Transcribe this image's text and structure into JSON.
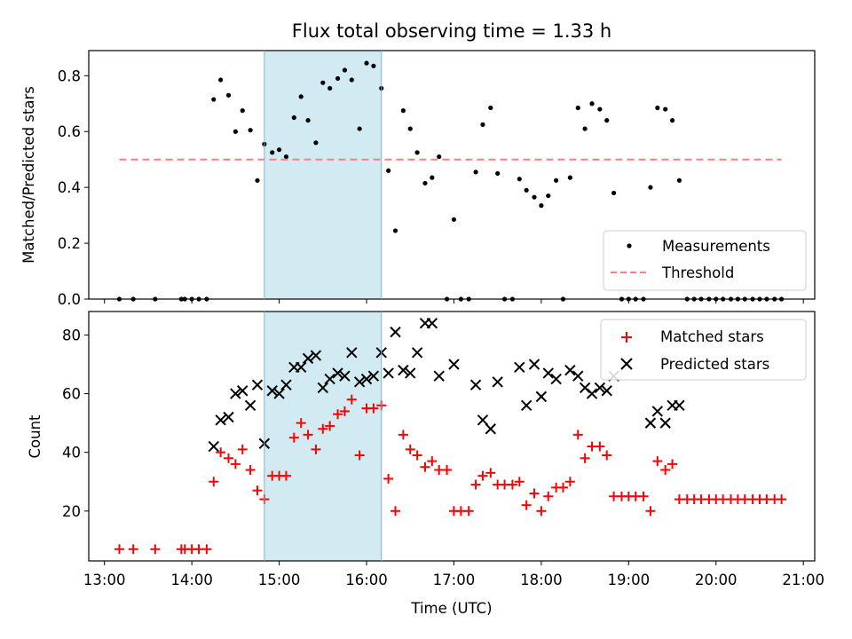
{
  "figure": {
    "title": "Flux total observing time = 1.33 h"
  },
  "chart_data": [
    {
      "type": "scatter",
      "panel": "top",
      "title": "Flux total observing time = 1.33 h",
      "xlabel": "",
      "ylabel": "Matched/Predicted stars",
      "x_unit": "hours UTC",
      "xlim": [
        12.82,
        21.13
      ],
      "ylim": [
        0,
        0.89
      ],
      "yticks": [
        0.0,
        0.2,
        0.4,
        0.6,
        0.8
      ],
      "ytick_labels": [
        "0.0",
        "0.2",
        "0.4",
        "0.6",
        "0.8"
      ],
      "xticks": [
        13,
        14,
        15,
        16,
        17,
        18,
        19,
        20,
        21
      ],
      "grid": false,
      "legend_position": "lower right",
      "shaded_interval": {
        "x": [
          14.83,
          16.17
        ],
        "color": "#add8e6"
      },
      "series": [
        {
          "name": "Measurements",
          "kind": "scatter",
          "marker": "dot",
          "color": "#000000",
          "points": [
            [
              13.17,
              0.0
            ],
            [
              13.33,
              0.0
            ],
            [
              13.58,
              0.0
            ],
            [
              13.88,
              0.0
            ],
            [
              13.92,
              0.0
            ],
            [
              14.0,
              0.0
            ],
            [
              14.08,
              0.0
            ],
            [
              14.17,
              0.0
            ],
            [
              14.25,
              0.715
            ],
            [
              14.33,
              0.785
            ],
            [
              14.42,
              0.73
            ],
            [
              14.5,
              0.6
            ],
            [
              14.58,
              0.675
            ],
            [
              14.67,
              0.605
            ],
            [
              14.75,
              0.425
            ],
            [
              14.83,
              0.555
            ],
            [
              14.92,
              0.525
            ],
            [
              15.0,
              0.535
            ],
            [
              15.08,
              0.51
            ],
            [
              15.17,
              0.65
            ],
            [
              15.25,
              0.725
            ],
            [
              15.33,
              0.64
            ],
            [
              15.42,
              0.56
            ],
            [
              15.5,
              0.775
            ],
            [
              15.58,
              0.755
            ],
            [
              15.67,
              0.79
            ],
            [
              15.75,
              0.82
            ],
            [
              15.83,
              0.785
            ],
            [
              15.92,
              0.61
            ],
            [
              16.0,
              0.845
            ],
            [
              16.08,
              0.835
            ],
            [
              16.17,
              0.755
            ],
            [
              16.25,
              0.46
            ],
            [
              16.33,
              0.245
            ],
            [
              16.42,
              0.675
            ],
            [
              16.5,
              0.61
            ],
            [
              16.58,
              0.525
            ],
            [
              16.67,
              0.415
            ],
            [
              16.75,
              0.435
            ],
            [
              16.83,
              0.51
            ],
            [
              16.92,
              0.0
            ],
            [
              17.0,
              0.285
            ],
            [
              17.08,
              0.0
            ],
            [
              17.17,
              0.0
            ],
            [
              17.25,
              0.455
            ],
            [
              17.33,
              0.625
            ],
            [
              17.42,
              0.685
            ],
            [
              17.5,
              0.45
            ],
            [
              17.58,
              0.0
            ],
            [
              17.67,
              0.0
            ],
            [
              17.75,
              0.43
            ],
            [
              17.83,
              0.39
            ],
            [
              17.92,
              0.365
            ],
            [
              18.0,
              0.335
            ],
            [
              18.08,
              0.37
            ],
            [
              18.17,
              0.425
            ],
            [
              18.25,
              0.0
            ],
            [
              18.33,
              0.435
            ],
            [
              18.42,
              0.685
            ],
            [
              18.5,
              0.61
            ],
            [
              18.58,
              0.7
            ],
            [
              18.67,
              0.68
            ],
            [
              18.75,
              0.64
            ],
            [
              18.83,
              0.38
            ],
            [
              18.92,
              0.0
            ],
            [
              19.0,
              0.0
            ],
            [
              19.08,
              0.0
            ],
            [
              19.17,
              0.0
            ],
            [
              19.25,
              0.4
            ],
            [
              19.33,
              0.685
            ],
            [
              19.42,
              0.68
            ],
            [
              19.5,
              0.64
            ],
            [
              19.58,
              0.425
            ],
            [
              19.67,
              0.0
            ],
            [
              19.75,
              0.0
            ],
            [
              19.83,
              0.0
            ],
            [
              19.92,
              0.0
            ],
            [
              20.0,
              0.0
            ],
            [
              20.08,
              0.0
            ],
            [
              20.17,
              0.0
            ],
            [
              20.25,
              0.0
            ],
            [
              20.33,
              0.0
            ],
            [
              20.42,
              0.0
            ],
            [
              20.5,
              0.0
            ],
            [
              20.58,
              0.0
            ],
            [
              20.67,
              0.0
            ],
            [
              20.75,
              0.0
            ]
          ]
        },
        {
          "name": "Threshold",
          "kind": "line",
          "style": "dashed",
          "color": "#ff7f7f",
          "points": [
            [
              13.17,
              0.5
            ],
            [
              20.75,
              0.5
            ]
          ]
        }
      ]
    },
    {
      "type": "scatter",
      "panel": "bottom",
      "title": "",
      "xlabel": "Time (UTC)",
      "ylabel": "Count",
      "x_unit": "hours UTC",
      "xlim": [
        12.82,
        21.13
      ],
      "ylim": [
        3,
        88
      ],
      "yticks": [
        20,
        40,
        60,
        80
      ],
      "ytick_labels": [
        "20",
        "40",
        "60",
        "80"
      ],
      "xticks": [
        13,
        14,
        15,
        16,
        17,
        18,
        19,
        20,
        21
      ],
      "xtick_labels": [
        "13:00",
        "14:00",
        "15:00",
        "16:00",
        "17:00",
        "18:00",
        "19:00",
        "20:00",
        "21:00"
      ],
      "grid": false,
      "legend_position": "upper right",
      "shaded_interval": {
        "x": [
          14.83,
          16.17
        ],
        "color": "#add8e6"
      },
      "series": [
        {
          "name": "Matched stars",
          "kind": "scatter",
          "marker": "plus",
          "color": "#ff0000",
          "points": [
            [
              13.17,
              7
            ],
            [
              13.33,
              7
            ],
            [
              13.58,
              7
            ],
            [
              13.88,
              7
            ],
            [
              13.92,
              7
            ],
            [
              14.0,
              7
            ],
            [
              14.08,
              7
            ],
            [
              14.17,
              7
            ],
            [
              14.25,
              30
            ],
            [
              14.33,
              40
            ],
            [
              14.42,
              38
            ],
            [
              14.5,
              36
            ],
            [
              14.58,
              41
            ],
            [
              14.67,
              34
            ],
            [
              14.75,
              27
            ],
            [
              14.83,
              24
            ],
            [
              14.92,
              32
            ],
            [
              15.0,
              32
            ],
            [
              15.08,
              32
            ],
            [
              15.17,
              45
            ],
            [
              15.25,
              50
            ],
            [
              15.33,
              46
            ],
            [
              15.42,
              41
            ],
            [
              15.5,
              48
            ],
            [
              15.58,
              49
            ],
            [
              15.67,
              53
            ],
            [
              15.75,
              54
            ],
            [
              15.83,
              58
            ],
            [
              15.92,
              39
            ],
            [
              16.0,
              55
            ],
            [
              16.08,
              55
            ],
            [
              16.17,
              56
            ],
            [
              16.25,
              31
            ],
            [
              16.33,
              20
            ],
            [
              16.42,
              46
            ],
            [
              16.5,
              41
            ],
            [
              16.58,
              39
            ],
            [
              16.67,
              35
            ],
            [
              16.75,
              37
            ],
            [
              16.83,
              34
            ],
            [
              16.92,
              34
            ],
            [
              17.0,
              20
            ],
            [
              17.08,
              20
            ],
            [
              17.17,
              20
            ],
            [
              17.25,
              29
            ],
            [
              17.33,
              32
            ],
            [
              17.42,
              33
            ],
            [
              17.5,
              29
            ],
            [
              17.58,
              29
            ],
            [
              17.67,
              29
            ],
            [
              17.75,
              30
            ],
            [
              17.83,
              22
            ],
            [
              17.92,
              26
            ],
            [
              18.0,
              20
            ],
            [
              18.08,
              25
            ],
            [
              18.17,
              28
            ],
            [
              18.25,
              28
            ],
            [
              18.33,
              30
            ],
            [
              18.42,
              46
            ],
            [
              18.5,
              38
            ],
            [
              18.58,
              42
            ],
            [
              18.67,
              42
            ],
            [
              18.75,
              39
            ],
            [
              18.83,
              25
            ],
            [
              18.92,
              25
            ],
            [
              19.0,
              25
            ],
            [
              19.08,
              25
            ],
            [
              19.17,
              25
            ],
            [
              19.25,
              20
            ],
            [
              19.33,
              37
            ],
            [
              19.42,
              34
            ],
            [
              19.5,
              36
            ],
            [
              19.58,
              24
            ],
            [
              19.67,
              24
            ],
            [
              19.75,
              24
            ],
            [
              19.83,
              24
            ],
            [
              19.92,
              24
            ],
            [
              20.0,
              24
            ],
            [
              20.08,
              24
            ],
            [
              20.17,
              24
            ],
            [
              20.25,
              24
            ],
            [
              20.33,
              24
            ],
            [
              20.42,
              24
            ],
            [
              20.5,
              24
            ],
            [
              20.58,
              24
            ],
            [
              20.67,
              24
            ],
            [
              20.75,
              24
            ]
          ]
        },
        {
          "name": "Predicted stars",
          "kind": "scatter",
          "marker": "x",
          "color": "#000000",
          "points": [
            [
              14.25,
              42
            ],
            [
              14.33,
              51
            ],
            [
              14.42,
              52
            ],
            [
              14.5,
              60
            ],
            [
              14.58,
              61
            ],
            [
              14.67,
              56
            ],
            [
              14.75,
              63
            ],
            [
              14.83,
              43
            ],
            [
              14.92,
              61
            ],
            [
              15.0,
              60
            ],
            [
              15.08,
              63
            ],
            [
              15.17,
              69
            ],
            [
              15.25,
              69
            ],
            [
              15.33,
              72
            ],
            [
              15.42,
              73
            ],
            [
              15.5,
              62
            ],
            [
              15.58,
              65
            ],
            [
              15.67,
              67
            ],
            [
              15.75,
              66
            ],
            [
              15.83,
              74
            ],
            [
              15.92,
              64
            ],
            [
              16.0,
              65
            ],
            [
              16.08,
              66
            ],
            [
              16.17,
              74
            ],
            [
              16.25,
              67
            ],
            [
              16.33,
              81
            ],
            [
              16.42,
              68
            ],
            [
              16.5,
              67
            ],
            [
              16.58,
              74
            ],
            [
              16.67,
              84
            ],
            [
              16.75,
              84
            ],
            [
              16.83,
              66
            ],
            [
              17.0,
              70
            ],
            [
              17.25,
              63
            ],
            [
              17.33,
              51
            ],
            [
              17.42,
              48
            ],
            [
              17.5,
              64
            ],
            [
              17.75,
              69
            ],
            [
              17.83,
              56
            ],
            [
              17.92,
              70
            ],
            [
              18.0,
              59
            ],
            [
              18.08,
              67
            ],
            [
              18.17,
              65
            ],
            [
              18.33,
              68
            ],
            [
              18.42,
              66
            ],
            [
              18.5,
              62
            ],
            [
              18.58,
              60
            ],
            [
              18.67,
              62
            ],
            [
              18.75,
              61
            ],
            [
              18.83,
              66
            ],
            [
              19.25,
              50
            ],
            [
              19.33,
              54
            ],
            [
              19.42,
              50
            ],
            [
              19.5,
              56
            ],
            [
              19.58,
              56
            ]
          ]
        }
      ]
    }
  ]
}
